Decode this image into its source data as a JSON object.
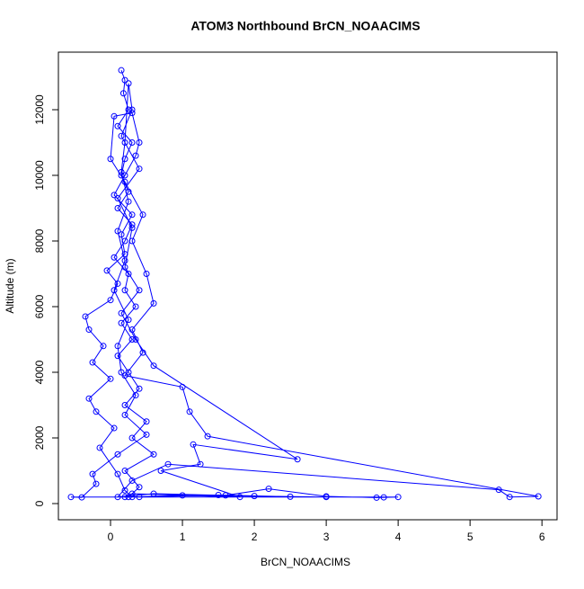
{
  "chart_data": {
    "type": "line",
    "title": "ATOM3 Northbound BrCN_NOAACIMS",
    "x_label": "BrCN_NOAACIMS",
    "y_label": "Altitude (m)",
    "color": "#0000ff",
    "markers": true,
    "xlim": [
      -0.725,
      6.21
    ],
    "ylim": [
      -493,
      13753
    ],
    "xticks": [
      0,
      1,
      2,
      3,
      4,
      5,
      6
    ],
    "yticks": [
      0,
      2000,
      4000,
      6000,
      8000,
      10000,
      12000
    ],
    "x": [
      0.15,
      0.2,
      0.18,
      0.25,
      0.1,
      0.3,
      0.2,
      0.15,
      0.25,
      0.1,
      0.3,
      0.2,
      0.05,
      0.25,
      0.2,
      0.35,
      0.15,
      0.3,
      0.1,
      0.25,
      0.4,
      0.2,
      0.5,
      0.3,
      0.6,
      0.2,
      0.4,
      0.25,
      1.0,
      2.0,
      3.0,
      3.8,
      2.5,
      1.5,
      0.3,
      0.2,
      0.1,
      -0.15,
      0.05,
      -0.2,
      -0.3,
      0.0,
      -0.25,
      -0.1,
      -0.3,
      -0.35,
      0.0,
      0.1,
      -0.05,
      0.2,
      0.15,
      0.3,
      0.05,
      0.2,
      0.35,
      0.4,
      0.3,
      0.05,
      0.0,
      0.2,
      0.45,
      0.3,
      0.5,
      0.6,
      0.3,
      0.45,
      0.2,
      1.0,
      1.1,
      1.35,
      5.95,
      5.55,
      5.4,
      0.8,
      0.3,
      0.1,
      0.6,
      1.6,
      2.2,
      3.0,
      3.7,
      4.0,
      0.4,
      -0.55,
      -0.4,
      -0.2,
      -0.25,
      0.1,
      0.5,
      0.2,
      0.35,
      0.15,
      0.1,
      0.25,
      0.05,
      0.2,
      0.1,
      0.25,
      0.15,
      0.2,
      0.25,
      0.3,
      0.15,
      0.4,
      0.1,
      0.3,
      0.2,
      0.4,
      0.15,
      0.35,
      0.6,
      2.6,
      1.15,
      1.25,
      0.7,
      1.8,
      0.3,
      0.2
    ],
    "y": [
      13200,
      12900,
      12500,
      12000,
      11500,
      11000,
      10500,
      10000,
      9500,
      9000,
      8500,
      8000,
      7500,
      7000,
      6500,
      6000,
      5500,
      5000,
      4500,
      4000,
      3500,
      3000,
      2500,
      2000,
      1500,
      1000,
      500,
      200,
      250,
      230,
      200,
      190,
      210,
      260,
      200,
      400,
      900,
      1700,
      2300,
      2800,
      3200,
      3800,
      4300,
      4800,
      5300,
      5700,
      6200,
      6700,
      7100,
      7600,
      8200,
      8800,
      9400,
      10000,
      10600,
      11000,
      11900,
      11800,
      10500,
      9800,
      8800,
      8000,
      7000,
      6100,
      5300,
      4600,
      3900,
      3550,
      2800,
      2050,
      220,
      200,
      420,
      1200,
      700,
      200,
      300,
      250,
      450,
      220,
      180,
      200,
      200,
      200,
      190,
      600,
      900,
      1500,
      2100,
      2700,
      3300,
      4000,
      4800,
      5600,
      6500,
      7400,
      8300,
      9200,
      10100,
      11000,
      12800,
      12000,
      11200,
      10200,
      9300,
      8400,
      7200,
      6500,
      5800,
      5000,
      4200,
      1350,
      1800,
      1200,
      1000,
      200,
      300,
      200
    ]
  }
}
